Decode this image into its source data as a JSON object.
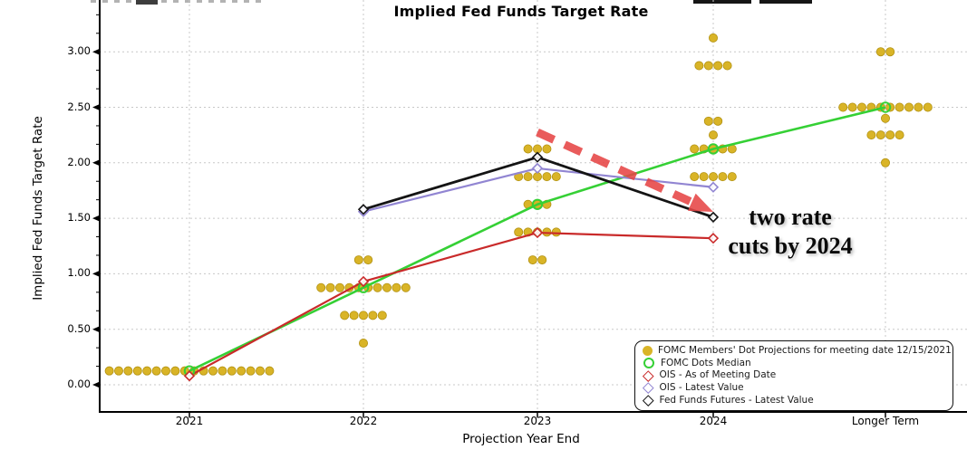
{
  "title": "Implied Fed Funds Target Rate",
  "axes": {
    "xlabel": "Projection Year End",
    "ylabel": "Implied Fed Funds Target Rate",
    "xticks": [
      "2021",
      "2022",
      "2023",
      "2024",
      "Longer Term"
    ],
    "yticks": [
      "0.00",
      "0.50",
      "1.00",
      "1.50",
      "2.00",
      "2.50",
      "3.00"
    ],
    "ytick_values": [
      0.0,
      0.5,
      1.0,
      1.5,
      2.0,
      2.5,
      3.0
    ],
    "ylim": [
      -0.12,
      3.35
    ],
    "grid": "dashed"
  },
  "chart_data": {
    "type": "scatter",
    "title": "Implied Fed Funds Target Rate",
    "xlabel": "Projection Year End",
    "ylabel": "Implied Fed Funds Target Rate",
    "categories": [
      "2021",
      "2022",
      "2023",
      "2024",
      "Longer Term"
    ],
    "dot_series": {
      "name": "FOMC Members' Dot Projections for meeting date 12/15/2021",
      "color": "#d9b427",
      "stroke": "#b29212",
      "dots": [
        {
          "category": "2021",
          "rows": [
            [
              0.125,
              18
            ]
          ]
        },
        {
          "category": "2022",
          "rows": [
            [
              1.125,
              2
            ],
            [
              0.875,
              10
            ],
            [
              0.625,
              5
            ],
            [
              0.375,
              1
            ]
          ]
        },
        {
          "category": "2023",
          "rows": [
            [
              2.125,
              3
            ],
            [
              1.875,
              5
            ],
            [
              1.625,
              3
            ],
            [
              1.375,
              5
            ],
            [
              1.125,
              2
            ]
          ]
        },
        {
          "category": "2024",
          "rows": [
            [
              3.125,
              1
            ],
            [
              2.875,
              4
            ],
            [
              2.375,
              2
            ],
            [
              2.25,
              1
            ],
            [
              2.125,
              5
            ],
            [
              1.875,
              5
            ]
          ]
        },
        {
          "category": "Longer Term",
          "rows": [
            [
              3.0,
              2
            ],
            [
              2.5,
              10
            ],
            [
              2.4,
              1
            ],
            [
              2.25,
              4
            ],
            [
              2.0,
              1
            ]
          ]
        }
      ]
    },
    "line_series": [
      {
        "name": "FOMC Dots Median",
        "color": "#35d035",
        "marker": "open-circle",
        "points": [
          [
            "2021",
            0.125
          ],
          [
            "2022",
            0.875
          ],
          [
            "2023",
            1.625
          ],
          [
            "2024",
            2.125
          ],
          [
            "Longer Term",
            2.5
          ]
        ]
      },
      {
        "name": "OIS - As of Meeting Date",
        "color": "#c92a2a",
        "marker": "open-diamond",
        "points": [
          [
            "2021",
            0.08
          ],
          [
            "2022",
            0.93
          ],
          [
            "2023",
            1.37
          ],
          [
            "2024",
            1.32
          ]
        ]
      },
      {
        "name": "OIS - Latest Value",
        "color": "#9185d2",
        "marker": "open-diamond",
        "points": [
          [
            "2022",
            1.56
          ],
          [
            "2023",
            1.95
          ],
          [
            "2024",
            1.78
          ]
        ]
      },
      {
        "name": "Fed Funds Futures - Latest Value",
        "color": "#141414",
        "marker": "open-diamond",
        "points": [
          [
            "2022",
            1.58
          ],
          [
            "2023",
            2.05
          ],
          [
            "2024",
            1.51
          ]
        ]
      }
    ],
    "annotation_arrow": {
      "color": "#e64545",
      "from": [
        "2023",
        2.275
      ],
      "to": [
        "2024",
        1.558
      ]
    }
  },
  "annotation": {
    "line1": "two rate",
    "line2": "cuts by 2024"
  },
  "legend": {
    "items": [
      {
        "label": "FOMC Members' Dot Projections for meeting date 12/15/2021",
        "marker": "filled-circle",
        "color": "#d9b427"
      },
      {
        "label": "FOMC Dots Median",
        "marker": "open-circle",
        "color": "#35d035"
      },
      {
        "label": "OIS - As of Meeting Date",
        "marker": "open-diamond",
        "color": "#c92a2a"
      },
      {
        "label": "OIS - Latest Value",
        "marker": "open-diamond",
        "color": "#9185d2"
      },
      {
        "label": "Fed Funds Futures - Latest Value",
        "marker": "open-diamond",
        "color": "#141414"
      }
    ]
  },
  "colors": {
    "background": "#ffffff",
    "gridline": "#c8c8c8",
    "axis": "#000000",
    "dots": "#d9b427",
    "median": "#35d035",
    "ois_meeting": "#c92a2a",
    "ois_latest": "#9185d2",
    "futures": "#141414",
    "arrow": "#e64545"
  }
}
